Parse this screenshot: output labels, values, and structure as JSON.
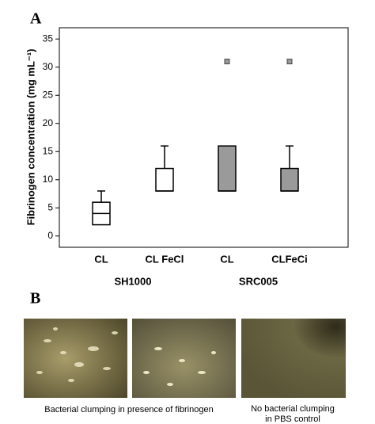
{
  "panel_labels": [
    "A",
    "B"
  ],
  "chart_data": {
    "type": "box",
    "y_label": "Fibrinogen concentration (mg mL⁻¹)",
    "categories": [
      "CL",
      "CL FeCl",
      "CL",
      "CLFeCi"
    ],
    "groups": [
      {
        "name": "SH1000",
        "span": [
          0,
          1
        ]
      },
      {
        "name": "SRC005",
        "span": [
          2,
          3
        ]
      }
    ],
    "series": [
      {
        "color": "#ffffff",
        "boxes": [
          {
            "min": 2,
            "q1": 2,
            "median": 4,
            "q3": 6,
            "max": 8,
            "outliers": []
          },
          {
            "min": 8,
            "q1": 8,
            "median": 8,
            "q3": 12,
            "max": 16,
            "outliers": []
          }
        ]
      },
      {
        "color": "#9a9a9a",
        "boxes": [
          {
            "min": 8,
            "q1": 8,
            "median": 8,
            "q3": 16,
            "max": 16,
            "outliers": [
              31
            ]
          },
          {
            "min": 8,
            "q1": 8,
            "median": 8,
            "q3": 12,
            "max": 16,
            "outliers": [
              31
            ]
          }
        ]
      }
    ],
    "ylim": [
      -2,
      37
    ],
    "yticks": [
      0,
      5,
      10,
      15,
      20,
      25,
      30,
      35
    ]
  },
  "photo_captions": [
    "Bacterial clumping in presence of fibrinogen",
    "No bacterial clumping",
    "in PBS control"
  ]
}
